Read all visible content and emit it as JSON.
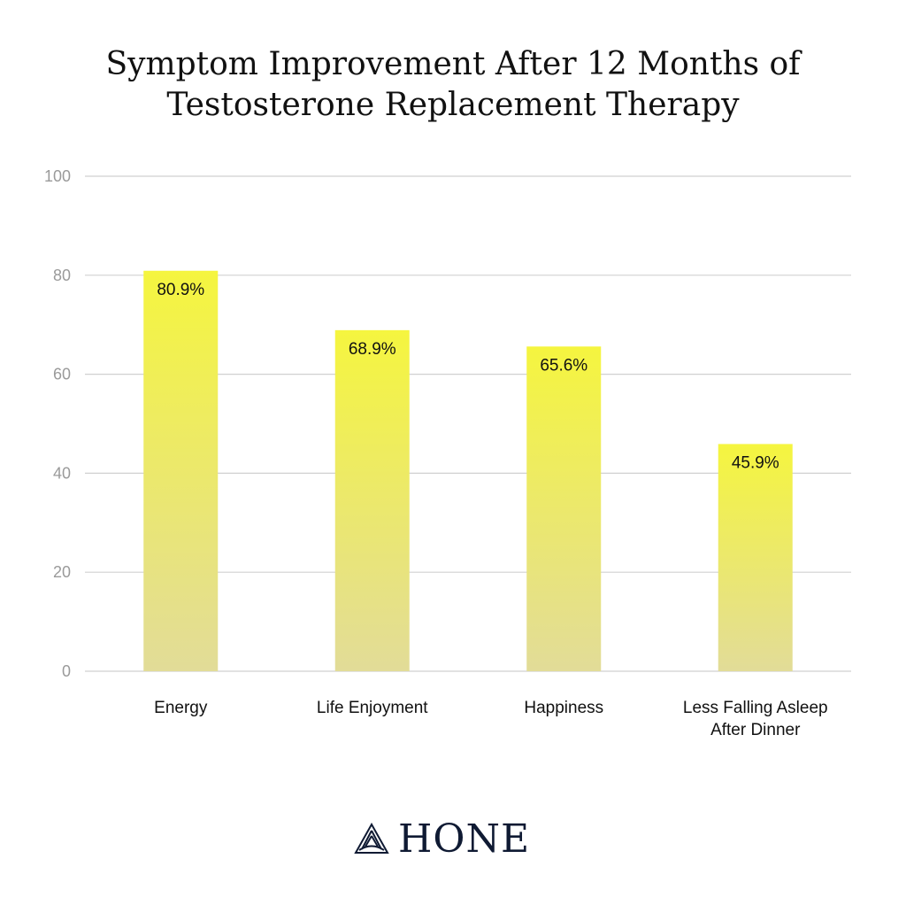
{
  "title_line1": "Symptom Improvement After 12 Months of",
  "title_line2": "Testosterone Replacement Therapy",
  "brand": {
    "name": "HONE",
    "icon": "mountain-logo-icon",
    "color": "#0f1a33"
  },
  "colors": {
    "bar_top": "#f5f53f",
    "bar_bottom": "#e2dc98",
    "grid": "#d0d0d0"
  },
  "chart_data": {
    "type": "bar",
    "categories": [
      "Energy",
      "Life Enjoyment",
      "Happiness",
      "Less Falling Asleep After Dinner"
    ],
    "category_lines": [
      [
        "Energy"
      ],
      [
        "Life Enjoyment"
      ],
      [
        "Happiness"
      ],
      [
        "Less Falling Asleep",
        "After Dinner"
      ]
    ],
    "values": [
      80.9,
      68.9,
      65.6,
      45.9
    ],
    "data_labels": [
      "80.9%",
      "68.9%",
      "65.6%",
      "45.9%"
    ],
    "title": "Symptom Improvement After 12 Months of Testosterone Replacement Therapy",
    "xlabel": "",
    "ylabel": "",
    "ylim": [
      0,
      100
    ],
    "yticks": [
      0,
      20,
      40,
      60,
      80,
      100
    ],
    "grid": true,
    "legend": "none"
  }
}
